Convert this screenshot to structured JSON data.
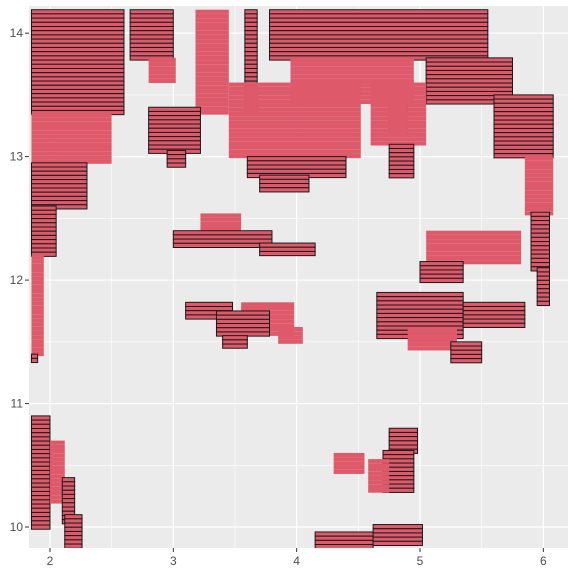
{
  "chart_data": {
    "type": "heatmap",
    "title": "",
    "xlabel": "",
    "ylabel": "",
    "xlim": [
      1.83,
      6.2
    ],
    "ylim": [
      9.83,
      14.22
    ],
    "x_ticks": [
      2,
      3,
      4,
      5,
      6
    ],
    "y_ticks": [
      10,
      11,
      12,
      13,
      14
    ],
    "grid": true,
    "legend": "none",
    "colors": {
      "fill": "#de5a6a",
      "outline": "#1a1a1a",
      "panel": "#ebebeb",
      "grid": "#ffffff"
    },
    "row_step": 0.034,
    "segments": [
      [
        14.19,
        13.35,
        1.85,
        2.6
      ],
      [
        14.19,
        13.35,
        3.18,
        3.45
      ],
      [
        14.19,
        13.35,
        3.58,
        3.68
      ],
      [
        14.19,
        13.8,
        3.78,
        5.55
      ],
      [
        13.8,
        13.45,
        3.95,
        4.95
      ],
      [
        13.45,
        13.2,
        4.75,
        4.9
      ],
      [
        13.8,
        13.45,
        5.05,
        5.75
      ],
      [
        13.35,
        12.95,
        1.85,
        2.5
      ],
      [
        12.95,
        12.6,
        1.85,
        2.3
      ],
      [
        12.6,
        12.2,
        1.85,
        2.05
      ],
      [
        12.2,
        11.4,
        1.85,
        1.95
      ],
      [
        11.4,
        11.34,
        1.85,
        1.9
      ],
      [
        14.19,
        13.8,
        2.65,
        3.0
      ],
      [
        13.8,
        13.6,
        2.8,
        3.02
      ],
      [
        13.4,
        13.05,
        2.8,
        3.22
      ],
      [
        13.05,
        12.92,
        2.95,
        3.1
      ],
      [
        13.6,
        13.0,
        3.45,
        4.52
      ],
      [
        13.0,
        12.85,
        3.6,
        4.4
      ],
      [
        12.85,
        12.72,
        3.7,
        4.1
      ],
      [
        13.6,
        13.1,
        4.6,
        5.05
      ],
      [
        13.1,
        12.85,
        4.75,
        4.95
      ],
      [
        13.5,
        13.0,
        5.6,
        6.08
      ],
      [
        13.0,
        12.55,
        5.85,
        6.08
      ],
      [
        12.55,
        12.1,
        5.9,
        6.05
      ],
      [
        12.1,
        11.8,
        5.95,
        6.05
      ],
      [
        12.54,
        12.38,
        3.22,
        3.55
      ],
      [
        12.4,
        12.28,
        3.0,
        3.8
      ],
      [
        12.3,
        12.2,
        3.7,
        4.15
      ],
      [
        12.4,
        12.15,
        5.05,
        5.82
      ],
      [
        12.15,
        12.0,
        5.0,
        5.35
      ],
      [
        11.82,
        11.7,
        3.1,
        3.48
      ],
      [
        11.82,
        11.58,
        3.55,
        3.98
      ],
      [
        11.75,
        11.55,
        3.35,
        3.78
      ],
      [
        11.55,
        11.45,
        3.4,
        3.6
      ],
      [
        11.62,
        11.5,
        3.85,
        4.05
      ],
      [
        11.9,
        11.55,
        4.65,
        5.35
      ],
      [
        11.82,
        11.62,
        5.35,
        5.85
      ],
      [
        11.6,
        11.45,
        4.9,
        5.3
      ],
      [
        11.5,
        11.35,
        5.25,
        5.5
      ],
      [
        10.9,
        10.0,
        1.85,
        2.0
      ],
      [
        10.7,
        10.2,
        2.0,
        2.12
      ],
      [
        10.4,
        10.05,
        2.1,
        2.2
      ],
      [
        10.1,
        9.83,
        2.12,
        2.26
      ],
      [
        10.6,
        10.45,
        4.3,
        4.55
      ],
      [
        10.8,
        10.62,
        4.75,
        4.98
      ],
      [
        10.62,
        10.3,
        4.7,
        4.95
      ],
      [
        10.55,
        10.3,
        4.58,
        4.75
      ],
      [
        9.96,
        9.85,
        4.15,
        4.62
      ],
      [
        10.02,
        9.86,
        4.62,
        5.02
      ]
    ]
  }
}
